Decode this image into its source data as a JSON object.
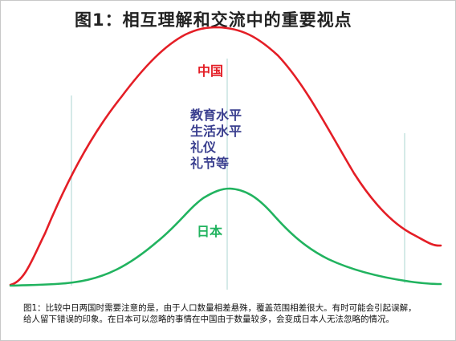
{
  "title": "图1：相互理解和交流中的重要视点",
  "curves": {
    "china": {
      "label": "中国",
      "color": "#e41e26"
    },
    "japan": {
      "label": "日本",
      "color": "#21b35f"
    }
  },
  "factors": {
    "color": "#3a3f8f",
    "items": [
      "教育水平",
      "生活水平",
      "礼仪",
      "礼节等"
    ]
  },
  "guide_line_color": "#b9dcd8",
  "caption": "图1：比较中日两国时需要注意的是，由于人口数量相差悬殊，覆盖范围相差很大。有时可能会引起误解，给人留下错误的印象。在日本可以忽略的事情在中国由于数量较多，会变成日本人无法忽略的情况。"
}
